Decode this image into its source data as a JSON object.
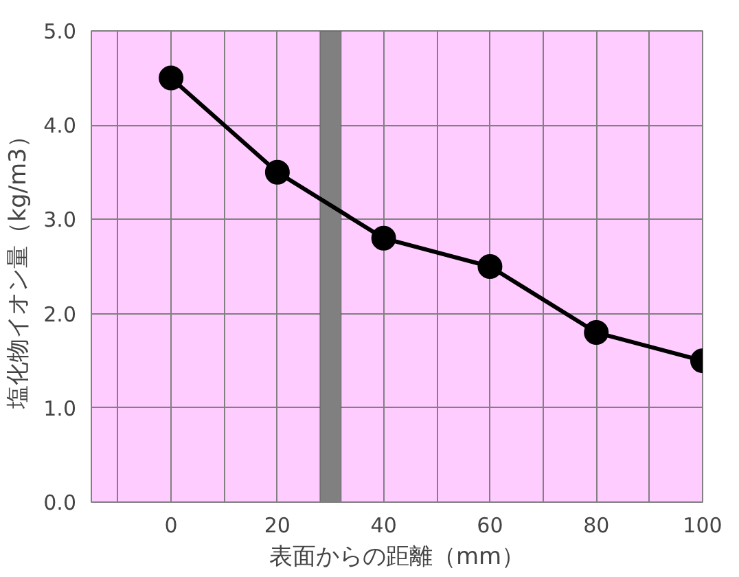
{
  "chart_data": {
    "type": "line",
    "xlabel": "表面からの距離（mm）",
    "ylabel": "塩化物イオン量（kg/m3）",
    "x": [
      0,
      20,
      40,
      60,
      80,
      100
    ],
    "series": [
      {
        "color": "#000000",
        "values": [
          4.5,
          3.5,
          2.8,
          2.5,
          1.8,
          1.5
        ]
      }
    ],
    "xlim": [
      -15,
      100
    ],
    "ylim": [
      0,
      5
    ],
    "xticks": [
      {
        "value": -10,
        "label": null
      },
      0,
      {
        "value": 10,
        "label": null
      },
      20,
      {
        "value": 30,
        "label": null
      },
      40,
      {
        "value": 50,
        "label": null
      },
      60,
      {
        "value": 70,
        "label": null
      },
      80,
      {
        "value": 90,
        "label": null
      },
      100
    ],
    "yticks": [
      {
        "value": 0,
        "label": "0.0"
      },
      {
        "value": 1,
        "label": "1.0"
      },
      {
        "value": 2,
        "label": "2.0"
      },
      {
        "value": 3,
        "label": "3.0"
      },
      {
        "value": 4,
        "label": "4.0"
      },
      {
        "value": 5,
        "label": "5.0"
      }
    ],
    "bands": [
      {
        "axis": "x",
        "from": 28,
        "to": 32,
        "color": "#808080"
      }
    ],
    "grid": true,
    "marker": "circle",
    "line_style": "solid"
  }
}
